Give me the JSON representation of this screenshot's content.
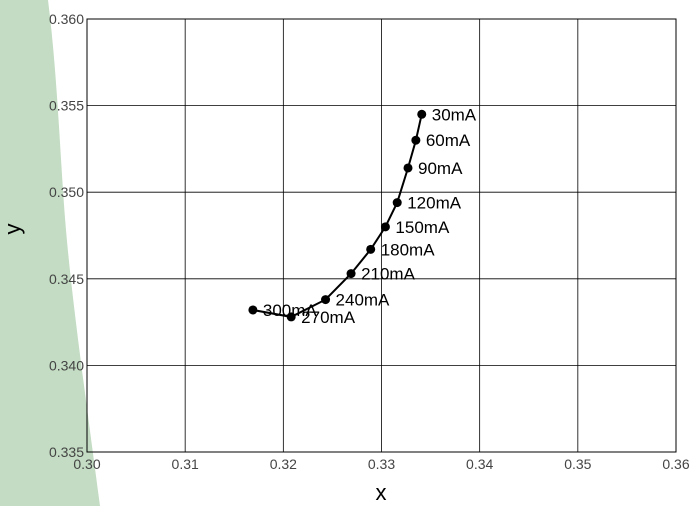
{
  "chart_data": {
    "type": "line",
    "title": "",
    "xlabel": "x",
    "ylabel": "y",
    "xlim": [
      0.3,
      0.36
    ],
    "ylim": [
      0.335,
      0.36
    ],
    "x_ticks": [
      "0.30",
      "0.31",
      "0.32",
      "0.33",
      "0.34",
      "0.35",
      "0.36"
    ],
    "y_ticks": [
      "0.335",
      "0.340",
      "0.345",
      "0.350",
      "0.355",
      "0.360"
    ],
    "grid": true,
    "legend": "none",
    "series": [
      {
        "points": [
          {
            "label": "30mA",
            "x": 0.3341,
            "y": 0.3545
          },
          {
            "label": "60mA",
            "x": 0.3335,
            "y": 0.353
          },
          {
            "label": "90mA",
            "x": 0.3327,
            "y": 0.3514
          },
          {
            "label": "120mA",
            "x": 0.3316,
            "y": 0.3494
          },
          {
            "label": "150mA",
            "x": 0.3304,
            "y": 0.348
          },
          {
            "label": "180mA",
            "x": 0.3289,
            "y": 0.3467
          },
          {
            "label": "210mA",
            "x": 0.3269,
            "y": 0.3453
          },
          {
            "label": "240mA",
            "x": 0.3243,
            "y": 0.3438
          },
          {
            "label": "270mA",
            "x": 0.3208,
            "y": 0.3428
          },
          {
            "label": "300mA",
            "x": 0.3169,
            "y": 0.3432
          }
        ]
      }
    ],
    "colors": {
      "line": "#000000",
      "grid": "#000000",
      "background_band": "#c3dcc3"
    }
  }
}
